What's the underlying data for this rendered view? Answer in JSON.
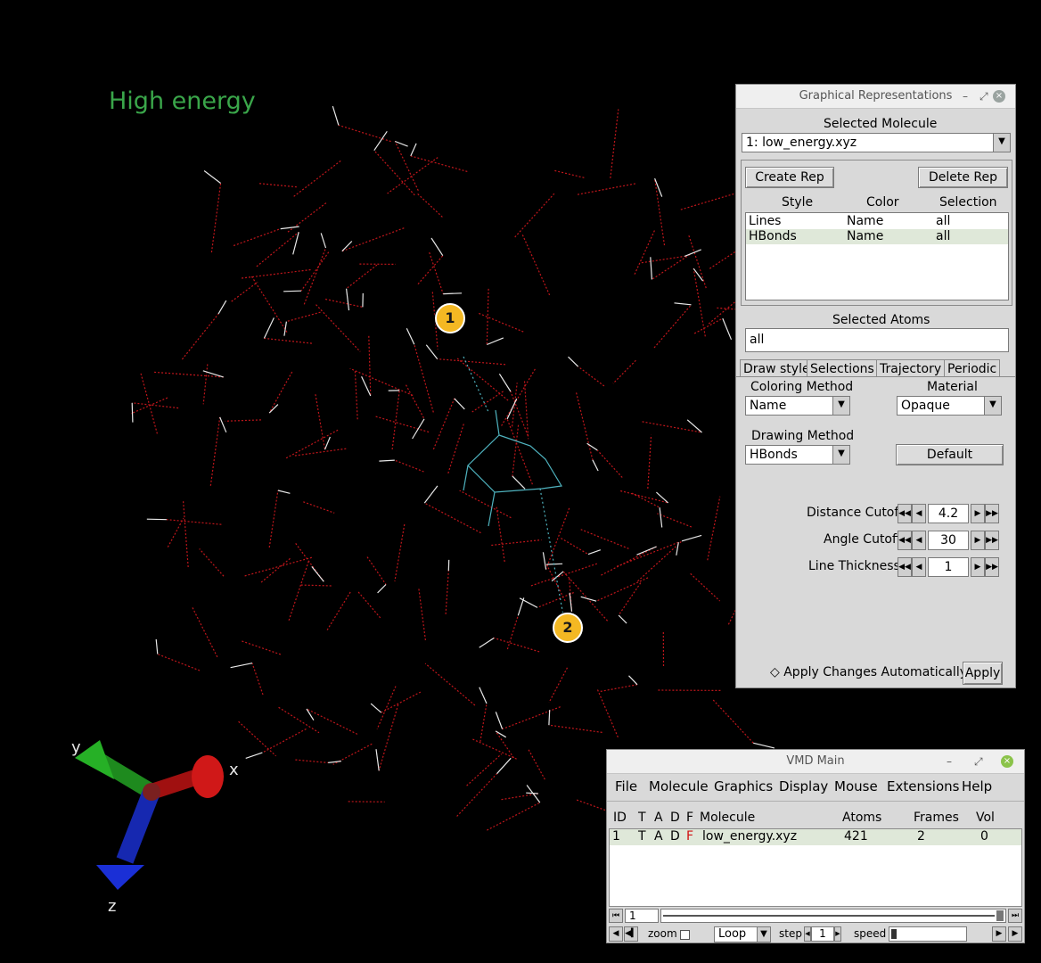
{
  "viewport": {
    "overlay_text": "High energy",
    "callouts": [
      "1",
      "2"
    ],
    "axes": {
      "x": "x",
      "y": "y",
      "z": "z"
    },
    "colors": {
      "bond": "#c0161b",
      "hbond": "#4fb3bf",
      "overlay_text": "#3aa64a",
      "callout": "#f4b823"
    }
  },
  "graphical_representations": {
    "title": "Graphical Representations",
    "selected_molecule_label": "Selected Molecule",
    "selected_molecule_value": "1: low_energy.xyz",
    "create_rep": "Create Rep",
    "delete_rep": "Delete Rep",
    "columns": [
      "Style",
      "Color",
      "Selection"
    ],
    "reps": [
      {
        "style": "Lines",
        "color": "Name",
        "selection": "all"
      },
      {
        "style": "HBonds",
        "color": "Name",
        "selection": "all"
      }
    ],
    "selected_atoms_label": "Selected Atoms",
    "selected_atoms_value": "all",
    "tabs": [
      "Draw style",
      "Selections",
      "Trajectory",
      "Periodic"
    ],
    "coloring_method_label": "Coloring Method",
    "coloring_method_value": "Name",
    "material_label": "Material",
    "material_value": "Opaque",
    "drawing_method_label": "Drawing Method",
    "drawing_method_value": "HBonds",
    "default_button": "Default",
    "params": [
      {
        "label": "Distance Cutoff",
        "value": "4.2"
      },
      {
        "label": "Angle Cutoff",
        "value": "30"
      },
      {
        "label": "Line Thickness",
        "value": "1"
      }
    ],
    "apply_auto_label": "Apply Changes Automatically",
    "apply_button": "Apply"
  },
  "vmd_main": {
    "title": "VMD Main",
    "menu": [
      "File",
      "Molecule",
      "Graphics",
      "Display",
      "Mouse",
      "Extensions",
      "Help"
    ],
    "columns": {
      "id": "ID",
      "t": "T",
      "a": "A",
      "d": "D",
      "f": "F",
      "molecule": "Molecule",
      "atoms": "Atoms",
      "frames": "Frames",
      "vol": "Vol"
    },
    "rows": [
      {
        "id": "1",
        "t": "T",
        "a": "A",
        "d": "D",
        "f": "F",
        "molecule": "low_energy.xyz",
        "atoms": "421",
        "frames": "2",
        "vol": "0"
      }
    ],
    "frame_value": "1",
    "zoom_label": "zoom",
    "loop_value": "Loop",
    "step_label": "step",
    "step_value": "1",
    "speed_label": "speed"
  }
}
